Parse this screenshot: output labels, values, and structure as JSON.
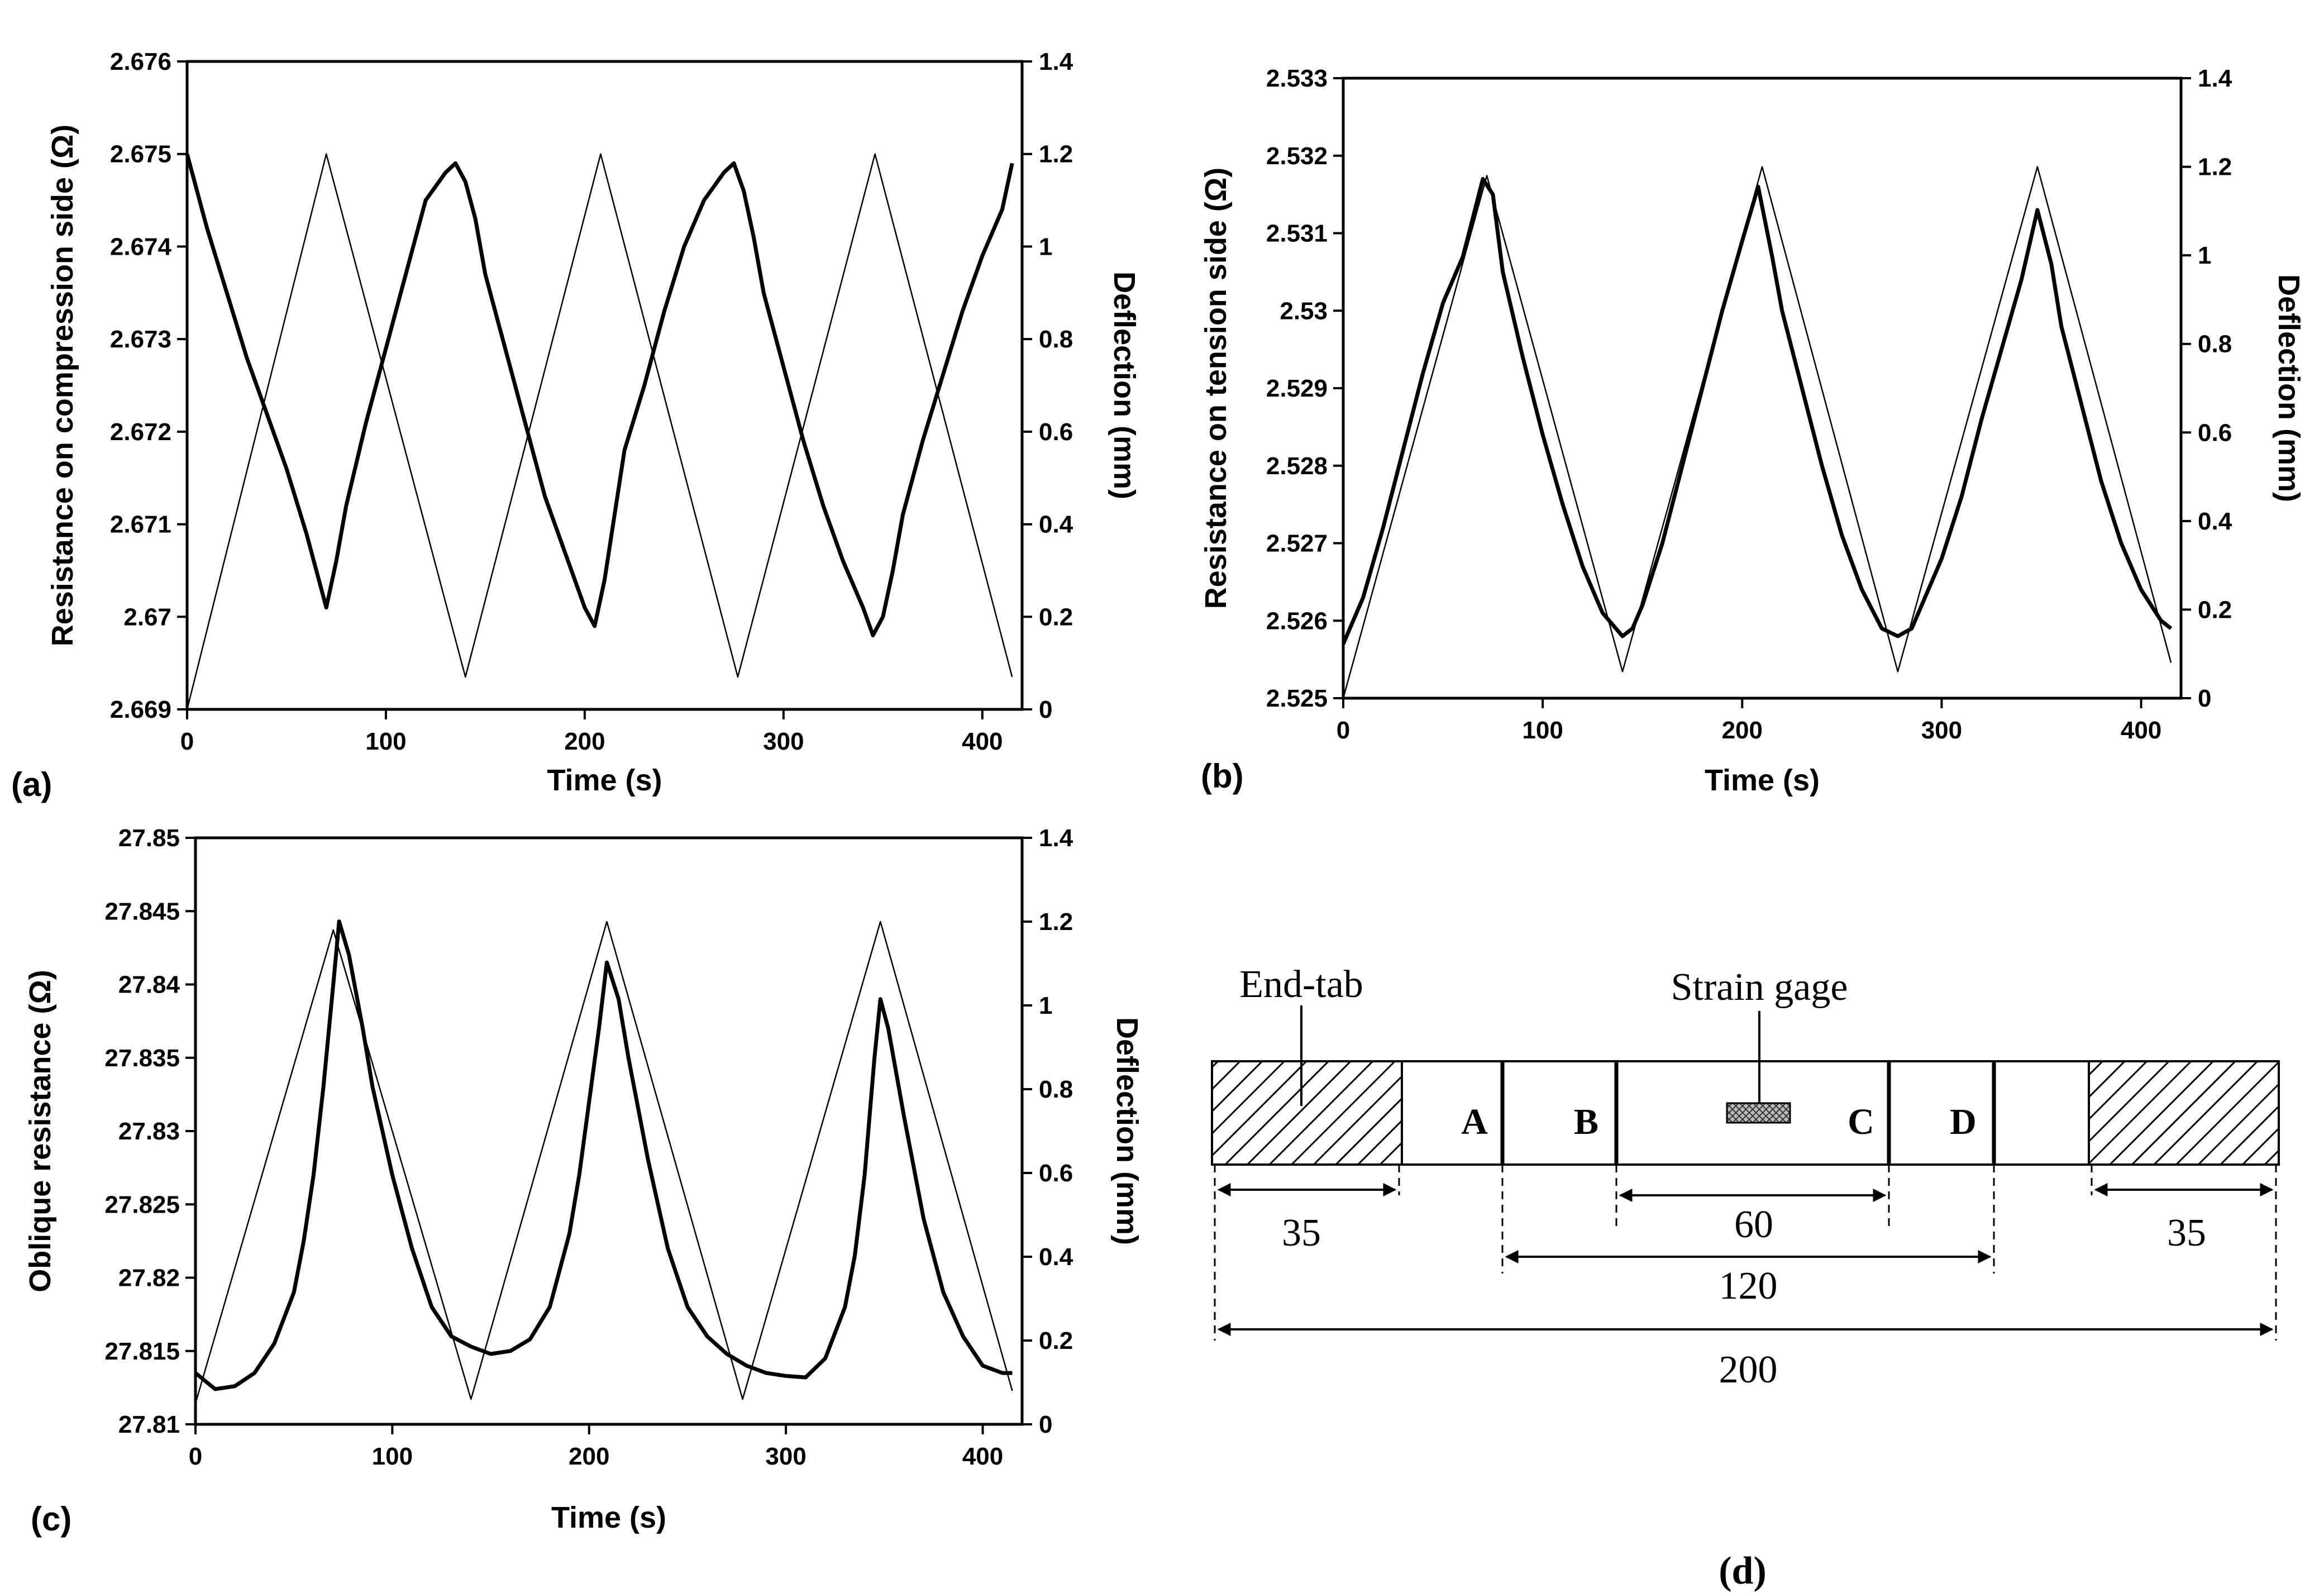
{
  "colors": {
    "background": "#ffffff",
    "ink": "#000000",
    "resistance_line": "#000000",
    "deflection_line": "#000000"
  },
  "chart_data": [
    {
      "id": "a",
      "type": "line",
      "panel_label": "(a)",
      "title": "",
      "xlabel": "Time (s)",
      "ylabel": "Resistance on compression side (Ω)",
      "y2label": "Deflection (mm)",
      "xlim": [
        0,
        420
      ],
      "ylim": [
        2.669,
        2.676
      ],
      "y2lim": [
        0,
        1.4
      ],
      "grid": false,
      "xticks": [
        0,
        100,
        200,
        300,
        400
      ],
      "xtick_labels": [
        "0",
        "100",
        "200",
        "300",
        "400"
      ],
      "yticks": [
        2.669,
        2.67,
        2.671,
        2.672,
        2.673,
        2.674,
        2.675,
        2.676
      ],
      "ytick_labels": [
        "2.669",
        "2.67",
        "2.671",
        "2.672",
        "2.673",
        "2.674",
        "2.675",
        "2.676"
      ],
      "y2ticks": [
        0,
        0.2,
        0.4,
        0.6,
        0.8,
        1,
        1.2,
        1.4
      ],
      "y2tick_labels": [
        "0",
        "0.2",
        "0.4",
        "0.6",
        "0.8",
        "1",
        "1.2",
        "1.4"
      ],
      "series": [
        {
          "name": "Resistance",
          "axis": "left",
          "style": "thick",
          "x": [
            0,
            10,
            20,
            30,
            40,
            50,
            60,
            65,
            70,
            75,
            80,
            90,
            100,
            110,
            120,
            130,
            135,
            140,
            145,
            150,
            160,
            170,
            180,
            190,
            200,
            205,
            210,
            215,
            220,
            230,
            240,
            250,
            260,
            270,
            275,
            280,
            285,
            290,
            300,
            310,
            320,
            330,
            340,
            345,
            350,
            355,
            360,
            370,
            380,
            390,
            400,
            410,
            415
          ],
          "y": [
            2.675,
            2.6742,
            2.6735,
            2.6728,
            2.6722,
            2.6716,
            2.6709,
            2.6705,
            2.6701,
            2.6706,
            2.6712,
            2.6721,
            2.6729,
            2.6737,
            2.6745,
            2.6748,
            2.6749,
            2.6747,
            2.6743,
            2.6737,
            2.6729,
            2.6721,
            2.6713,
            2.6707,
            2.6701,
            2.6699,
            2.6704,
            2.6711,
            2.6718,
            2.6725,
            2.6733,
            2.674,
            2.6745,
            2.6748,
            2.6749,
            2.6746,
            2.6741,
            2.6735,
            2.6727,
            2.6719,
            2.6712,
            2.6706,
            2.6701,
            2.6698,
            2.67,
            2.6705,
            2.6711,
            2.6719,
            2.6726,
            2.6733,
            2.6739,
            2.6744,
            2.6749
          ]
        },
        {
          "name": "Deflection",
          "axis": "right",
          "style": "thin",
          "x": [
            0,
            70,
            140,
            208,
            277,
            346,
            415
          ],
          "y": [
            0,
            1.2,
            0.07,
            1.2,
            0.07,
            1.2,
            0.07
          ]
        }
      ]
    },
    {
      "id": "b",
      "type": "line",
      "panel_label": "(b)",
      "title": "",
      "xlabel": "Time (s)",
      "ylabel": "Resistance on tension side (Ω)",
      "y2label": "Deflection (mm)",
      "xlim": [
        0,
        420
      ],
      "ylim": [
        2.525,
        2.533
      ],
      "y2lim": [
        0,
        1.4
      ],
      "grid": false,
      "xticks": [
        0,
        100,
        200,
        300,
        400
      ],
      "xtick_labels": [
        "0",
        "100",
        "200",
        "300",
        "400"
      ],
      "yticks": [
        2.525,
        2.526,
        2.527,
        2.528,
        2.529,
        2.53,
        2.531,
        2.532,
        2.533
      ],
      "ytick_labels": [
        "2.525",
        "2.526",
        "2.527",
        "2.528",
        "2.529",
        "2.53",
        "2.531",
        "2.532",
        "2.533"
      ],
      "y2ticks": [
        0,
        0.2,
        0.4,
        0.6,
        0.8,
        1,
        1.2,
        1.4
      ],
      "y2tick_labels": [
        "0",
        "0.2",
        "0.4",
        "0.6",
        "0.8",
        "1",
        "1.2",
        "1.4"
      ],
      "series": [
        {
          "name": "Resistance",
          "axis": "left",
          "style": "thick",
          "x": [
            0,
            10,
            20,
            30,
            40,
            50,
            60,
            70,
            75,
            80,
            90,
            100,
            110,
            120,
            130,
            140,
            145,
            150,
            160,
            170,
            180,
            190,
            200,
            208,
            215,
            220,
            230,
            240,
            250,
            260,
            270,
            278,
            285,
            290,
            300,
            310,
            320,
            330,
            340,
            348,
            355,
            360,
            370,
            380,
            390,
            400,
            410,
            415
          ],
          "y": [
            2.5257,
            2.5263,
            2.5272,
            2.5282,
            2.5292,
            2.5301,
            2.5307,
            2.5317,
            2.5315,
            2.5305,
            2.5294,
            2.5284,
            2.5275,
            2.5267,
            2.5261,
            2.5258,
            2.5259,
            2.5262,
            2.527,
            2.528,
            2.529,
            2.53,
            2.5309,
            2.5316,
            2.5307,
            2.53,
            2.529,
            2.528,
            2.5271,
            2.5264,
            2.5259,
            2.5258,
            2.5259,
            2.5262,
            2.5268,
            2.5276,
            2.5286,
            2.5295,
            2.5304,
            2.5313,
            2.5306,
            2.5298,
            2.5288,
            2.5278,
            2.527,
            2.5264,
            2.526,
            2.5259
          ]
        },
        {
          "name": "Deflection",
          "axis": "right",
          "style": "thin",
          "x": [
            0,
            72,
            140,
            210,
            278,
            348,
            415
          ],
          "y": [
            0,
            1.18,
            0.06,
            1.2,
            0.06,
            1.2,
            0.08
          ]
        }
      ]
    },
    {
      "id": "c",
      "type": "line",
      "panel_label": "(c)",
      "title": "",
      "xlabel": "Time (s)",
      "ylabel": "Oblique resistance (Ω)",
      "y2label": "Deflection (mm)",
      "xlim": [
        0,
        420
      ],
      "ylim": [
        27.81,
        27.85
      ],
      "y2lim": [
        0,
        1.4
      ],
      "grid": false,
      "xticks": [
        0,
        100,
        200,
        300,
        400
      ],
      "xtick_labels": [
        "0",
        "100",
        "200",
        "300",
        "400"
      ],
      "yticks": [
        27.81,
        27.815,
        27.82,
        27.825,
        27.83,
        27.835,
        27.84,
        27.845,
        27.85
      ],
      "ytick_labels": [
        "27.81",
        "27.815",
        "27.82",
        "27.825",
        "27.83",
        "27.835",
        "27.84",
        "27.845",
        "27.85"
      ],
      "y2ticks": [
        0,
        0.2,
        0.4,
        0.6,
        0.8,
        1,
        1.2,
        1.4
      ],
      "y2tick_labels": [
        "0",
        "0.2",
        "0.4",
        "0.6",
        "0.8",
        "1",
        "1.2",
        "1.4"
      ],
      "series": [
        {
          "name": "Resistance",
          "axis": "left",
          "style": "thick",
          "x": [
            0,
            10,
            20,
            30,
            40,
            50,
            55,
            60,
            65,
            70,
            73,
            78,
            85,
            90,
            100,
            110,
            120,
            130,
            140,
            150,
            160,
            170,
            180,
            190,
            195,
            200,
            205,
            209,
            215,
            220,
            230,
            240,
            250,
            260,
            270,
            280,
            290,
            300,
            310,
            320,
            330,
            335,
            340,
            345,
            348,
            352,
            360,
            370,
            380,
            390,
            400,
            410,
            415
          ],
          "y": [
            27.8135,
            27.8124,
            27.8126,
            27.8135,
            27.8155,
            27.819,
            27.8225,
            27.827,
            27.833,
            27.84,
            27.8443,
            27.842,
            27.837,
            27.833,
            27.827,
            27.822,
            27.818,
            27.816,
            27.8153,
            27.8148,
            27.815,
            27.8158,
            27.818,
            27.823,
            27.827,
            27.832,
            27.837,
            27.8415,
            27.839,
            27.835,
            27.828,
            27.822,
            27.818,
            27.816,
            27.8148,
            27.814,
            27.8135,
            27.8133,
            27.8132,
            27.8145,
            27.818,
            27.8215,
            27.827,
            27.835,
            27.839,
            27.837,
            27.831,
            27.824,
            27.819,
            27.816,
            27.814,
            27.8135,
            27.8135
          ]
        },
        {
          "name": "Deflection",
          "axis": "right",
          "style": "thin",
          "x": [
            0,
            70,
            140,
            209,
            278,
            348,
            415
          ],
          "y": [
            0.05,
            1.18,
            0.06,
            1.2,
            0.06,
            1.2,
            0.08
          ]
        }
      ]
    }
  ],
  "diagram": {
    "panel_label": "(d)",
    "end_tab_label": "End-tab",
    "strain_gage_label": "Strain gage",
    "electrodes": [
      "A",
      "B",
      "C",
      "D"
    ],
    "dimensions": {
      "end_tab_left": "35",
      "inner_ac": "60",
      "outer_ad": "120",
      "total": "200",
      "end_tab_right": "35"
    }
  }
}
